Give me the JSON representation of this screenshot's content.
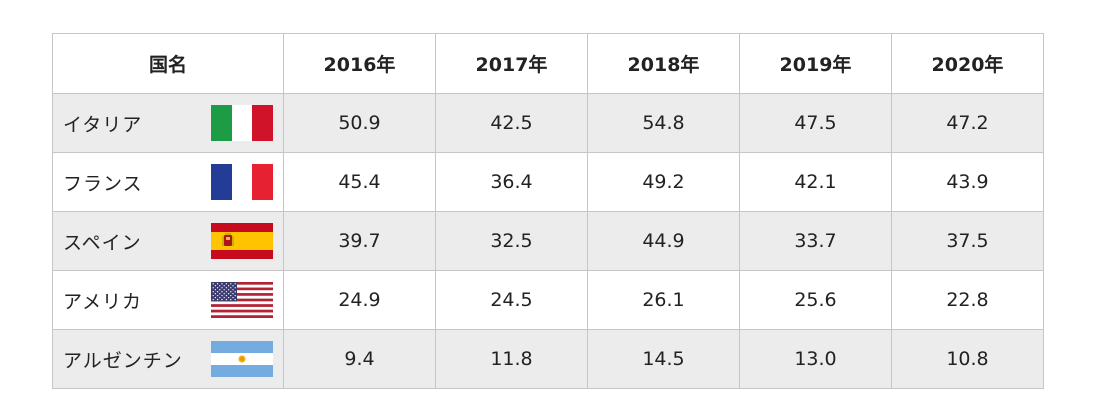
{
  "chart_data": {
    "type": "table",
    "header": {
      "country": "国名",
      "years": [
        "2016年",
        "2017年",
        "2018年",
        "2019年",
        "2020年"
      ]
    },
    "rows": [
      {
        "country": "イタリア",
        "flag": "italy-flag",
        "values": [
          "50.9",
          "42.5",
          "54.8",
          "47.5",
          "47.2"
        ]
      },
      {
        "country": "フランス",
        "flag": "france-flag",
        "values": [
          "45.4",
          "36.4",
          "49.2",
          "42.1",
          "43.9"
        ]
      },
      {
        "country": "スペイン",
        "flag": "spain-flag",
        "values": [
          "39.7",
          "32.5",
          "44.9",
          "33.7",
          "37.5"
        ]
      },
      {
        "country": "アメリカ",
        "flag": "usa-flag",
        "values": [
          "24.9",
          "24.5",
          "26.1",
          "25.6",
          "22.8"
        ]
      },
      {
        "country": "アルゼンチン",
        "flag": "argentina-flag",
        "values": [
          "9.4",
          "11.8",
          "14.5",
          "13.0",
          "10.8"
        ]
      }
    ]
  },
  "colors": {
    "header_background": "#ffffff",
    "shaded_row": "#ececec",
    "plain_row": "#ffffff",
    "border": "#c6c6c6",
    "italy_green": "#1e9b45",
    "italy_red": "#d1132a",
    "france_blue": "#233c96",
    "france_red": "#e62232",
    "spain_red": "#c60b1e",
    "spain_yellow": "#ffc400",
    "usa_red": "#b22234",
    "usa_blue": "#3c3b6e",
    "argentina_blue": "#74acdf",
    "argentina_sun": "#f6b40e"
  }
}
